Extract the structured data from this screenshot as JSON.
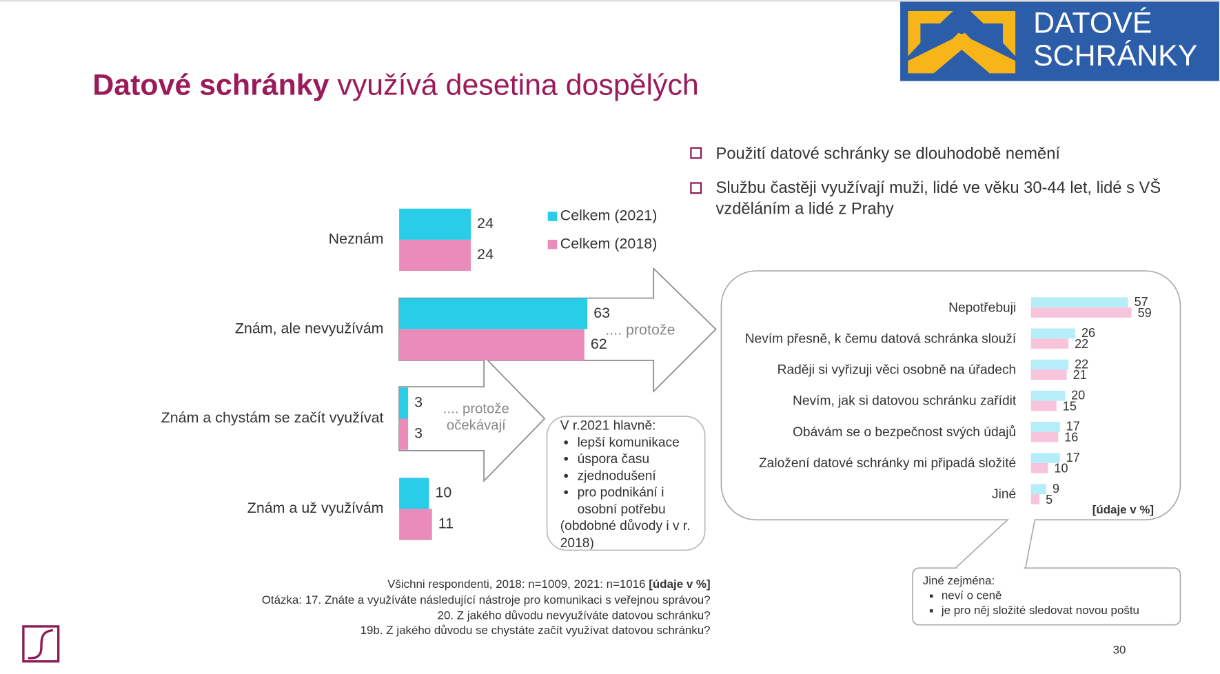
{
  "header": {
    "title_bold": "Datové schránky",
    "title_rest": "využívá desetina dospělých",
    "logo_line1": "DATOVÉ",
    "logo_line2": "SCHRÁNKY"
  },
  "bullets": [
    "Použití datové schránky se dlouhodobě nemění",
    "Službu častěji využívají muži, lidé ve věku 30-44 let, lidé s VŠ vzděláním a lidé z Prahy"
  ],
  "chart_data": [
    {
      "type": "bar",
      "orientation": "horizontal",
      "categories": [
        "Neznám",
        "Znám, ale nevyužívám",
        "Znám a chystám se začít využívat",
        "Znám a už využívám"
      ],
      "series": [
        {
          "name": "Celkem (2021)",
          "color": "#29cde8",
          "values": [
            24,
            63,
            3,
            10
          ]
        },
        {
          "name": "Celkem (2018)",
          "color": "#e98cba",
          "values": [
            24,
            62,
            3,
            11
          ]
        }
      ]
    },
    {
      "type": "bar",
      "orientation": "horizontal",
      "categories": [
        "Nepotřebuji",
        "Nevím přesně, k čemu datová schránka slouží",
        "Raději si vyřizuji věci osobně na úřadech",
        "Nevím, jak si datovou schránku zařídit",
        "Obávám se o bezpečnost svých údajů",
        "Založení datové schránky mi připadá složité",
        "Jiné"
      ],
      "series": [
        {
          "color": "#b5eef9",
          "values": [
            57,
            26,
            22,
            20,
            17,
            17,
            9
          ]
        },
        {
          "color": "#f7c4dc",
          "values": [
            59,
            22,
            21,
            15,
            16,
            10,
            5
          ]
        }
      ],
      "note": "[údaje v %]"
    }
  ],
  "arrows": {
    "because": ".... protože",
    "because_expect": ".... protože očekávají"
  },
  "reasons": {
    "title": "V r.2021 hlavně:",
    "items": [
      "lepší komunikace",
      "úspora času",
      "zjednodušení",
      "pro podnikání i osobní potřebu"
    ],
    "note": "(obdobné důvody i v r. 2018)"
  },
  "other": {
    "title": "Jiné zejména:",
    "items": [
      "neví o ceně",
      "je pro něj složité sledovat novou poštu"
    ]
  },
  "footnotes": {
    "line1": "Všichni respondenti, 2018: n=1009, 2021: n=1016",
    "line1_bold": "[údaje v %]",
    "lines": [
      "Otázka: 17. Znáte a využíváte následující nástroje pro komunikaci s veřejnou správou?",
      "20. Z jakého důvodu nevyužíváte datovou schránku?",
      "19b. Z jakého důvodu se chystáte začít využívat datovou schránku?"
    ]
  },
  "page_number": "30"
}
